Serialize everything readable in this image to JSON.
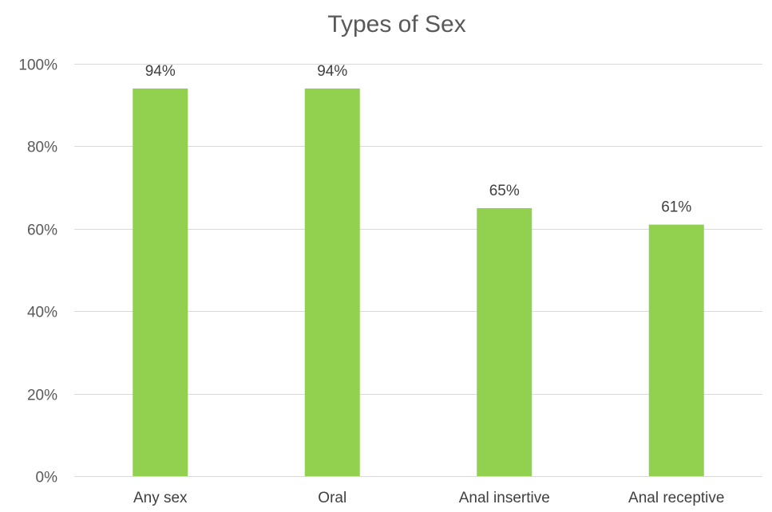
{
  "chart_data": {
    "type": "bar",
    "title": "Types of Sex",
    "xlabel": "",
    "ylabel": "",
    "categories": [
      "Any sex",
      "Oral",
      "Anal insertive",
      "Anal receptive"
    ],
    "values": [
      94,
      94,
      65,
      61
    ],
    "data_labels": [
      "94%",
      "94%",
      "65%",
      "61%"
    ],
    "ylim": [
      0,
      100
    ],
    "y_ticks": [
      0,
      20,
      40,
      60,
      80,
      100
    ],
    "y_tick_labels": [
      "0%",
      "20%",
      "40%",
      "60%",
      "80%",
      "100%"
    ],
    "grid": true,
    "legend": "none",
    "bar_color": "#92d050"
  }
}
